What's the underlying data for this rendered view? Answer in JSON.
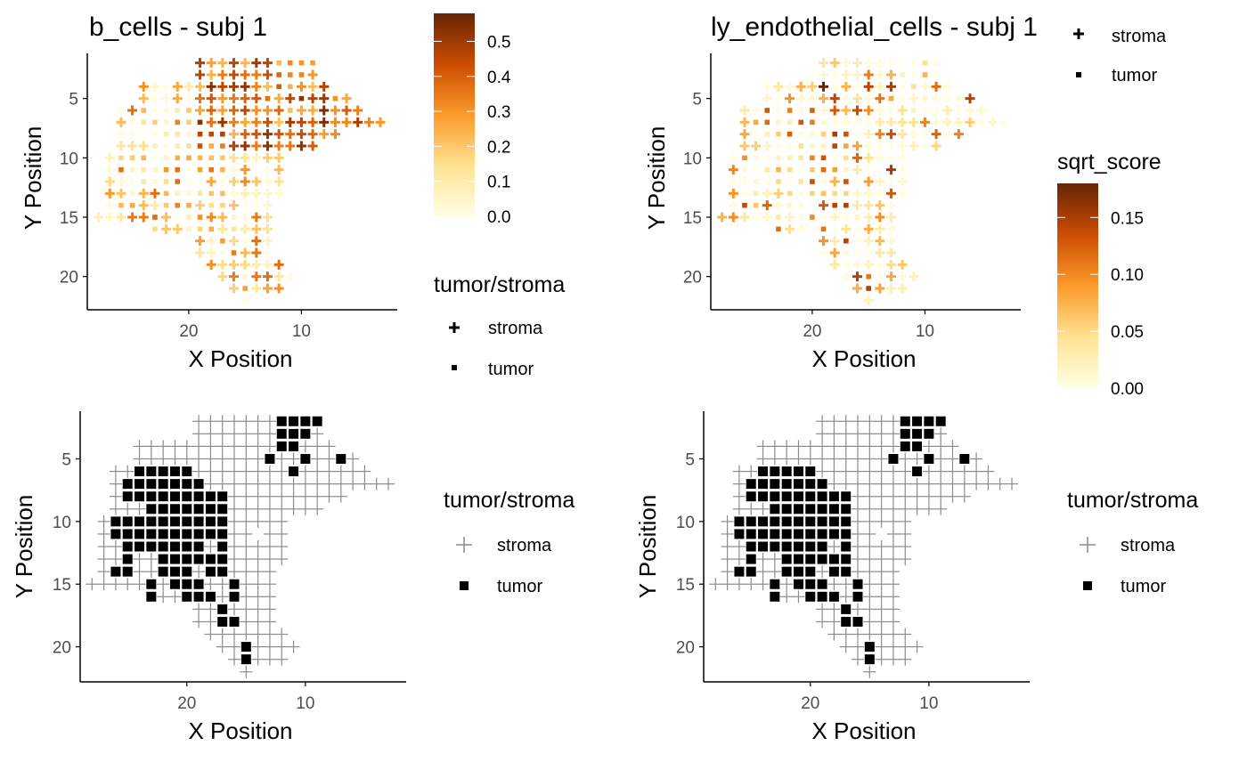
{
  "colors": {
    "score_low": "#FFFFE5",
    "score_mid1": "#FEE391",
    "score_mid2": "#FB9A29",
    "score_mid3": "#CC4C02",
    "score_high": "#662506",
    "stroma_grey": "#8c8c8c",
    "tumor_black": "#000000",
    "axis": "#000000",
    "tick_text": "#4d4d4d"
  },
  "chart_data": [
    {
      "type": "scatter",
      "panel": "top-left",
      "title": "b_cells - subj 1",
      "xlabel": "X Position",
      "ylabel": "Y Position",
      "x_reversed": true,
      "y_reversed": true,
      "xlim": [
        29,
        1.5
      ],
      "ylim": [
        1.2,
        22.8
      ],
      "x_ticks": [
        20,
        10
      ],
      "y_ticks": [
        5,
        10,
        15,
        20
      ],
      "color_by": "score",
      "score_seed": 11,
      "colorbar": {
        "title": "",
        "placement": "top-right",
        "range": [
          0,
          0.58
        ],
        "ticks": [
          0.0,
          0.1,
          0.2,
          0.3,
          0.4,
          0.5
        ],
        "tick_labels": [
          "0.0",
          "0.1",
          "0.2",
          "0.3",
          "0.4",
          "0.5"
        ]
      },
      "legend": {
        "title": "tumor/stroma",
        "placement": "right",
        "entries": [
          "stroma",
          "tumor"
        ]
      }
    },
    {
      "type": "scatter",
      "panel": "top-right",
      "title": "ly_endothelial_cells - subj 1",
      "xlabel": "X Position",
      "ylabel": "Y Position",
      "x_reversed": true,
      "y_reversed": true,
      "xlim": [
        29,
        1.5
      ],
      "ylim": [
        1.2,
        22.8
      ],
      "x_ticks": [
        20,
        10
      ],
      "y_ticks": [
        5,
        10,
        15,
        20
      ],
      "color_by": "score",
      "score_seed": 37,
      "colorbar": {
        "title": "sqrt_score",
        "placement": "right",
        "range": [
          0,
          0.18
        ],
        "ticks": [
          0.0,
          0.05,
          0.1,
          0.15
        ],
        "tick_labels": [
          "0.00",
          "0.05",
          "0.10",
          "0.15"
        ]
      },
      "legend": {
        "title": "",
        "placement": "top-right",
        "entries": [
          "stroma",
          "tumor"
        ]
      }
    },
    {
      "type": "scatter",
      "panel": "bottom-left",
      "title": "",
      "xlabel": "X Position",
      "ylabel": "Y Position",
      "x_reversed": true,
      "y_reversed": true,
      "xlim": [
        29,
        1.5
      ],
      "ylim": [
        1.2,
        22.8
      ],
      "x_ticks": [
        20,
        10
      ],
      "y_ticks": [
        5,
        10,
        15,
        20
      ],
      "color_by": "class",
      "legend": {
        "title": "tumor/stroma",
        "placement": "right",
        "entries": [
          "stroma",
          "tumor"
        ]
      }
    },
    {
      "type": "scatter",
      "panel": "bottom-right",
      "title": "",
      "xlabel": "X Position",
      "ylabel": "Y Position",
      "x_reversed": true,
      "y_reversed": true,
      "xlim": [
        29,
        1.5
      ],
      "ylim": [
        1.2,
        22.8
      ],
      "x_ticks": [
        20,
        10
      ],
      "y_ticks": [
        5,
        10,
        15,
        20
      ],
      "color_by": "class",
      "legend": {
        "title": "tumor/stroma",
        "placement": "right",
        "entries": [
          "stroma",
          "tumor"
        ]
      }
    }
  ],
  "spots": {
    "grid_rows": [
      {
        "y": 2,
        "x_from": 9,
        "x_to": 19
      },
      {
        "y": 3,
        "x_from": 9,
        "x_to": 19
      },
      {
        "y": 4,
        "x_from": 8,
        "x_to": 24
      },
      {
        "y": 5,
        "x_from": 6,
        "x_to": 24
      },
      {
        "y": 6,
        "x_from": 5,
        "x_to": 26
      },
      {
        "y": 7,
        "x_from": 3,
        "x_to": 26
      },
      {
        "y": 8,
        "x_from": 7,
        "x_to": 26
      },
      {
        "y": 9,
        "x_from": 9,
        "x_to": 26
      },
      {
        "y": 10,
        "x_from": 12,
        "x_to": 27
      },
      {
        "y": 11,
        "x_from": 12,
        "x_to": 27
      },
      {
        "y": 12,
        "x_from": 12,
        "x_to": 27
      },
      {
        "y": 13,
        "x_from": 12,
        "x_to": 27
      },
      {
        "y": 14,
        "x_from": 13,
        "x_to": 27
      },
      {
        "y": 15,
        "x_from": 13,
        "x_to": 28
      },
      {
        "y": 16,
        "x_from": 13,
        "x_to": 22
      },
      {
        "y": 17,
        "x_from": 13,
        "x_to": 19
      },
      {
        "y": 18,
        "x_from": 13,
        "x_to": 19
      },
      {
        "y": 19,
        "x_from": 12,
        "x_to": 18
      },
      {
        "y": 20,
        "x_from": 11,
        "x_to": 17
      },
      {
        "y": 21,
        "x_from": 12,
        "x_to": 16
      },
      {
        "y": 22,
        "x_from": 15,
        "x_to": 15
      }
    ],
    "tumor": [
      [
        12,
        2
      ],
      [
        11,
        2
      ],
      [
        10,
        2
      ],
      [
        9,
        2
      ],
      [
        12,
        3
      ],
      [
        11,
        3
      ],
      [
        10,
        3
      ],
      [
        12,
        4
      ],
      [
        11,
        4
      ],
      [
        13,
        5
      ],
      [
        10,
        5
      ],
      [
        7,
        5
      ],
      [
        11,
        6
      ],
      [
        23,
        6
      ],
      [
        22,
        6
      ],
      [
        21,
        6
      ],
      [
        20,
        6
      ],
      [
        24,
        6
      ],
      [
        25,
        7
      ],
      [
        24,
        7
      ],
      [
        23,
        7
      ],
      [
        22,
        7
      ],
      [
        21,
        7
      ],
      [
        20,
        7
      ],
      [
        19,
        7
      ],
      [
        25,
        8
      ],
      [
        24,
        8
      ],
      [
        23,
        8
      ],
      [
        22,
        8
      ],
      [
        21,
        8
      ],
      [
        20,
        8
      ],
      [
        19,
        8
      ],
      [
        18,
        8
      ],
      [
        17,
        8
      ],
      [
        23,
        9
      ],
      [
        22,
        9
      ],
      [
        21,
        9
      ],
      [
        20,
        9
      ],
      [
        19,
        9
      ],
      [
        18,
        9
      ],
      [
        17,
        9
      ],
      [
        26,
        10
      ],
      [
        25,
        10
      ],
      [
        24,
        10
      ],
      [
        23,
        10
      ],
      [
        22,
        10
      ],
      [
        21,
        10
      ],
      [
        20,
        10
      ],
      [
        19,
        10
      ],
      [
        18,
        10
      ],
      [
        17,
        10
      ],
      [
        26,
        11
      ],
      [
        25,
        11
      ],
      [
        24,
        11
      ],
      [
        23,
        11
      ],
      [
        22,
        11
      ],
      [
        21,
        11
      ],
      [
        20,
        11
      ],
      [
        19,
        11
      ],
      [
        18,
        11
      ],
      [
        17,
        11
      ],
      [
        25,
        12
      ],
      [
        24,
        12
      ],
      [
        23,
        12
      ],
      [
        22,
        12
      ],
      [
        21,
        12
      ],
      [
        20,
        12
      ],
      [
        19,
        12
      ],
      [
        17,
        12
      ],
      [
        25,
        13
      ],
      [
        22,
        13
      ],
      [
        21,
        13
      ],
      [
        20,
        13
      ],
      [
        19,
        13
      ],
      [
        18,
        13
      ],
      [
        17,
        13
      ],
      [
        26,
        14
      ],
      [
        25,
        14
      ],
      [
        22,
        14
      ],
      [
        21,
        14
      ],
      [
        20,
        14
      ],
      [
        18,
        14
      ],
      [
        17,
        14
      ],
      [
        23,
        15
      ],
      [
        21,
        15
      ],
      [
        20,
        15
      ],
      [
        19,
        15
      ],
      [
        16,
        15
      ],
      [
        23,
        16
      ],
      [
        20,
        16
      ],
      [
        19,
        16
      ],
      [
        18,
        16
      ],
      [
        16,
        16
      ],
      [
        17,
        17
      ],
      [
        17,
        18
      ],
      [
        16,
        18
      ],
      [
        15,
        20
      ],
      [
        15,
        21
      ]
    ]
  },
  "legend_top_right": {
    "entries": [
      "stroma",
      "tumor"
    ]
  }
}
